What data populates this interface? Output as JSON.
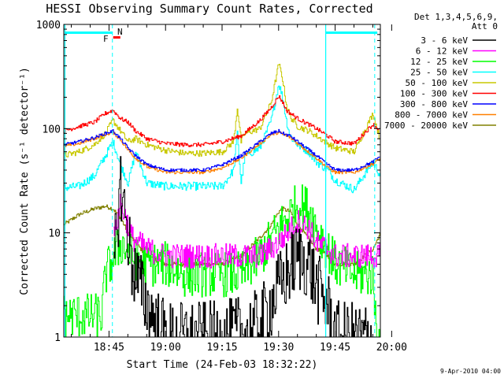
{
  "chart_data": {
    "type": "line",
    "title": "HESSI Observing Summary Count Rates, Corrected",
    "xlabel": "Start Time (24-Feb-03 18:32:22)",
    "ylabel": "Corrected Count Rate (s⁻¹ detector⁻¹)",
    "ylog": true,
    "ylim": [
      1,
      1000
    ],
    "xlim_minutes": [
      18.0,
      102.0
    ],
    "x_tick_labels": [
      "18:45",
      "19:00",
      "19:15",
      "19:30",
      "19:45",
      "20:00"
    ],
    "y_tick_labels": [
      "1",
      "10",
      "100",
      "1000"
    ],
    "legend_header_line1": "Det 1,3,4,5,6,9,",
    "legend_header_line2": "Att 0",
    "legend_position": "right",
    "footer_date": "9-Apr-2010 04:00",
    "annotations": [
      {
        "label": "F",
        "color": "#ff0000"
      },
      {
        "label": "N",
        "color": "#00e0e0"
      }
    ],
    "series": [
      {
        "name": "3 - 6 keV",
        "color": "#000000",
        "x": [
          18,
          30,
          31,
          33,
          36,
          40,
          45,
          50,
          55,
          60,
          70,
          75,
          80,
          83,
          85,
          88,
          90,
          92,
          95,
          100,
          102
        ],
        "y": [
          null,
          null,
          4,
          30,
          5,
          2,
          1,
          1,
          1,
          1,
          1.3,
          3,
          6,
          5,
          3,
          2,
          1,
          1,
          1,
          1,
          null
        ]
      },
      {
        "name": "6 - 12 keV",
        "color": "#ff00ff",
        "x": [
          18,
          30,
          31,
          33,
          36,
          40,
          45,
          50,
          55,
          60,
          65,
          70,
          75,
          80,
          83,
          85,
          88,
          90,
          95,
          100,
          102
        ],
        "y": [
          null,
          null,
          8,
          20,
          9,
          7,
          6,
          6,
          6,
          6,
          6,
          6,
          8,
          13,
          11,
          8,
          7,
          6,
          6,
          6,
          6
        ]
      },
      {
        "name": "12 - 25 keV",
        "color": "#00ff00",
        "x": [
          18,
          28,
          29,
          33,
          36,
          40,
          45,
          50,
          55,
          60,
          65,
          70,
          75,
          80,
          83,
          85,
          88,
          90,
          95,
          100,
          101,
          102
        ],
        "y": [
          1.6,
          1.6,
          4,
          8,
          6,
          5,
          5,
          4,
          4,
          4,
          4,
          6,
          11,
          19,
          17,
          11,
          7,
          5,
          4,
          4,
          1,
          1
        ]
      },
      {
        "name": "25 - 50 keV",
        "color": "#00ffff",
        "x": [
          18,
          22,
          26,
          29,
          31,
          33,
          35,
          37,
          40,
          45,
          50,
          55,
          60,
          63,
          64,
          65,
          66,
          70,
          73,
          75,
          76,
          77,
          78,
          80,
          83,
          85,
          88,
          90,
          95,
          100,
          102
        ],
        "y": [
          27,
          28,
          35,
          55,
          75,
          45,
          30,
          60,
          30,
          28,
          28,
          28,
          28,
          40,
          90,
          30,
          55,
          65,
          120,
          270,
          200,
          120,
          85,
          70,
          60,
          48,
          40,
          32,
          26,
          48,
          35
        ]
      },
      {
        "name": "50 - 100 keV",
        "color": "#c8c800",
        "x": [
          18,
          22,
          26,
          29,
          31,
          33,
          35,
          37,
          40,
          45,
          50,
          55,
          60,
          63,
          64,
          65,
          66,
          70,
          73,
          75,
          76,
          77,
          78,
          80,
          83,
          85,
          88,
          90,
          95,
          100,
          102
        ],
        "y": [
          55,
          60,
          70,
          90,
          120,
          95,
          75,
          80,
          70,
          62,
          58,
          58,
          60,
          75,
          160,
          75,
          90,
          100,
          180,
          420,
          300,
          170,
          130,
          105,
          95,
          85,
          72,
          65,
          60,
          140,
          75
        ]
      },
      {
        "name": "100 - 300 keV",
        "color": "#ff0000",
        "x": [
          18,
          22,
          26,
          29,
          31,
          33,
          35,
          37,
          40,
          45,
          50,
          55,
          60,
          65,
          70,
          73,
          75,
          76,
          77,
          80,
          85,
          88,
          90,
          95,
          100,
          102
        ],
        "y": [
          95,
          105,
          115,
          140,
          150,
          125,
          115,
          95,
          80,
          72,
          70,
          70,
          75,
          85,
          120,
          160,
          205,
          180,
          150,
          125,
          100,
          85,
          75,
          72,
          110,
          95
        ]
      },
      {
        "name": "300 - 800 keV",
        "color": "#0000ff",
        "x": [
          18,
          22,
          26,
          29,
          31,
          33,
          35,
          37,
          40,
          45,
          50,
          55,
          60,
          65,
          70,
          73,
          75,
          76,
          78,
          80,
          85,
          88,
          90,
          95,
          100,
          102
        ],
        "y": [
          70,
          75,
          82,
          90,
          95,
          80,
          65,
          55,
          45,
          40,
          40,
          40,
          45,
          55,
          75,
          90,
          95,
          90,
          85,
          75,
          55,
          45,
          40,
          40,
          48,
          55
        ]
      },
      {
        "name": "800 - 7000 keV",
        "color": "#ff8000",
        "x": [
          18,
          22,
          26,
          29,
          31,
          33,
          35,
          37,
          40,
          45,
          50,
          55,
          60,
          65,
          70,
          73,
          75,
          76,
          78,
          80,
          85,
          88,
          90,
          95,
          100,
          102
        ],
        "y": [
          68,
          72,
          80,
          88,
          92,
          78,
          62,
          52,
          43,
          38,
          38,
          38,
          42,
          52,
          72,
          88,
          92,
          88,
          82,
          72,
          52,
          42,
          38,
          38,
          46,
          52
        ]
      },
      {
        "name": "7000 - 20000 keV",
        "color": "#808000",
        "x": [
          18,
          22,
          26,
          29,
          31,
          33,
          35,
          37,
          40,
          45,
          50,
          55,
          60,
          65,
          70,
          73,
          75,
          76,
          78,
          80,
          85,
          88,
          90,
          95,
          100,
          102
        ],
        "y": [
          12,
          15,
          17,
          18,
          17,
          14,
          10,
          8,
          6,
          5,
          5,
          5,
          5,
          6,
          9,
          12,
          16,
          17,
          16,
          12,
          7,
          6,
          5,
          5,
          7,
          10
        ]
      }
    ]
  }
}
